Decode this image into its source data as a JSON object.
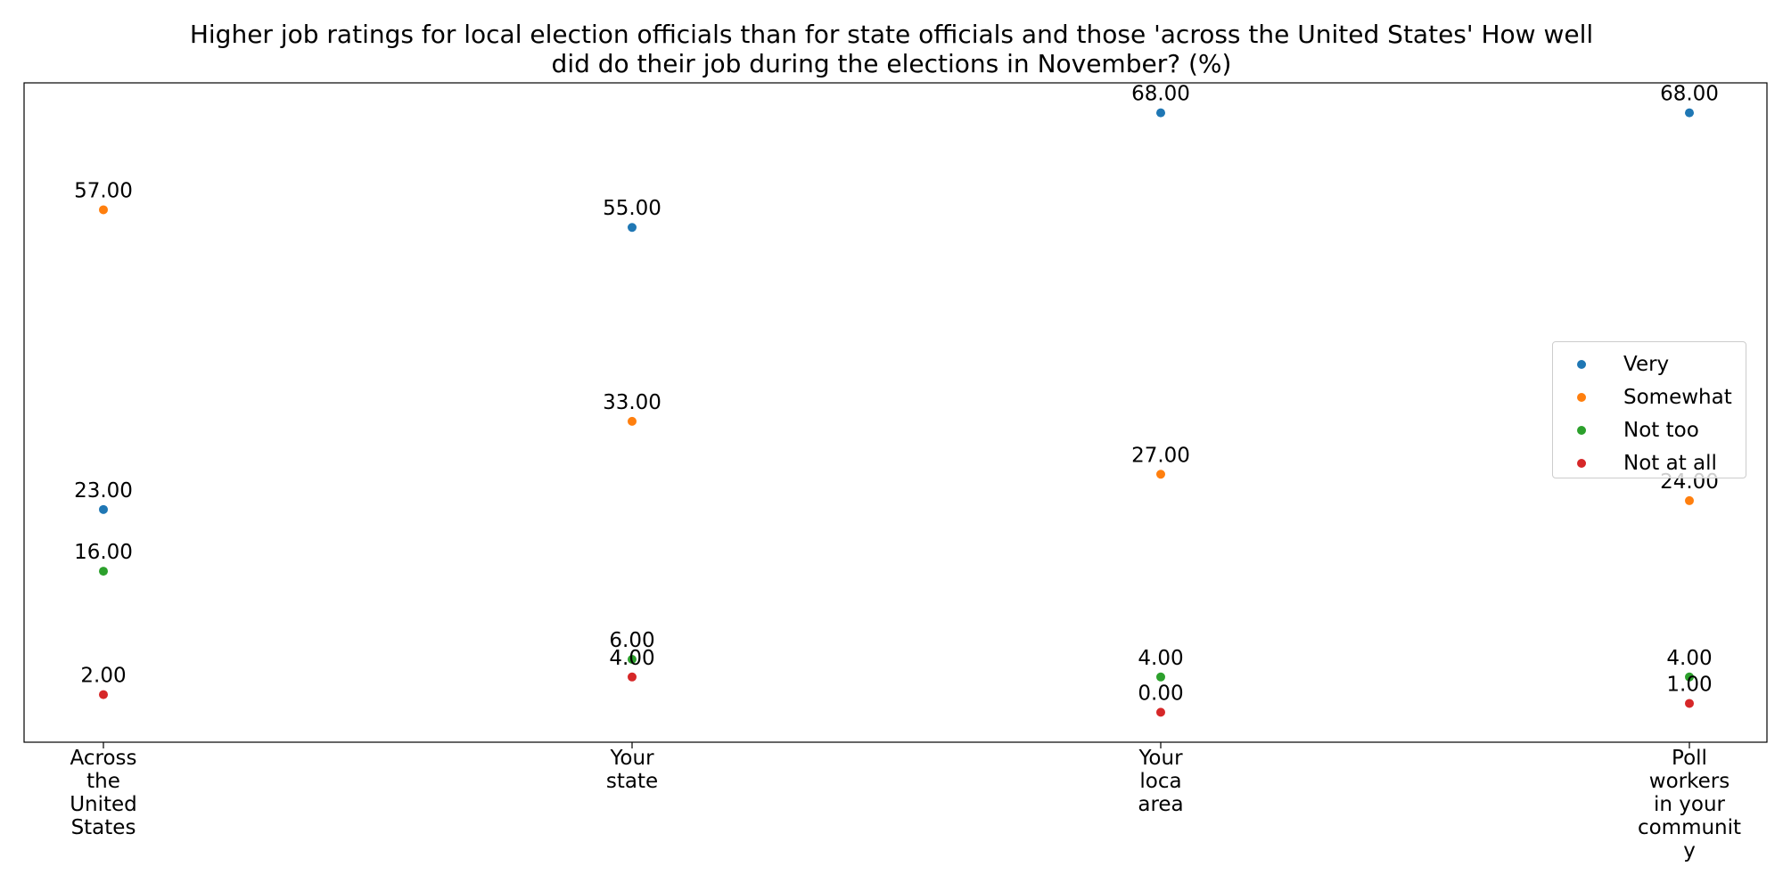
{
  "chart_data": {
    "type": "scatter",
    "title": "Higher job ratings for local election officials than for state officials and those 'across the United States' How well\ndid do their job during the elections in November? (%)",
    "categories": [
      "Across\nthe\nUnited\nStates",
      "Your\nstate",
      "Your\nloca\narea",
      "Poll\nworkers\nin your\ncommunit\ny"
    ],
    "series": [
      {
        "name": "Very",
        "color": "#1f77b4",
        "values": [
          23,
          55,
          68,
          68
        ],
        "labels": [
          "23.00",
          "55.00",
          "68.00",
          "68.00"
        ]
      },
      {
        "name": "Somewhat",
        "color": "#ff7f0e",
        "values": [
          57,
          33,
          27,
          24
        ],
        "labels": [
          "57.00",
          "33.00",
          "27.00",
          "24.00"
        ]
      },
      {
        "name": "Not too",
        "color": "#2ca02c",
        "values": [
          16,
          6,
          4,
          4
        ],
        "labels": [
          "16.00",
          "6.00",
          "4.00",
          "4.00"
        ]
      },
      {
        "name": "Not at all",
        "color": "#d62728",
        "values": [
          2,
          4,
          0,
          1
        ],
        "labels": [
          "2.00",
          "4.00",
          "0.00",
          "1.00"
        ]
      }
    ],
    "ylim": [
      -3.4,
      71.4
    ],
    "y_axis_visible": false,
    "grid": false,
    "legend_position": "center-right"
  }
}
